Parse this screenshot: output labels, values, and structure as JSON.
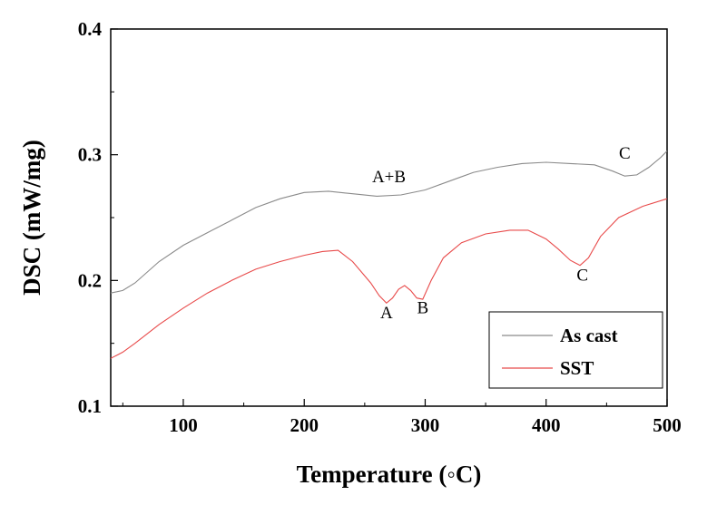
{
  "chart_data": {
    "type": "line",
    "xlabel": "Temperature (◦C)",
    "ylabel": "DSC (mW/mg)",
    "xlim": [
      40,
      500
    ],
    "ylim": [
      0.1,
      0.4
    ],
    "x_ticks": [
      "100",
      "200",
      "300",
      "400",
      "500"
    ],
    "y_ticks": [
      "0.1",
      "0.2",
      "0.3",
      "0.4"
    ],
    "grid": false,
    "legend_position": "bottom-right",
    "series": [
      {
        "name": "As cast",
        "color": "#8a8a8a",
        "x": [
          40,
          50,
          60,
          80,
          100,
          120,
          140,
          160,
          180,
          200,
          220,
          240,
          260,
          280,
          300,
          320,
          340,
          360,
          380,
          400,
          420,
          440,
          455,
          465,
          475,
          485,
          495,
          500
        ],
        "y": [
          0.19,
          0.192,
          0.198,
          0.215,
          0.228,
          0.238,
          0.248,
          0.258,
          0.265,
          0.27,
          0.271,
          0.269,
          0.267,
          0.268,
          0.272,
          0.279,
          0.286,
          0.29,
          0.293,
          0.294,
          0.293,
          0.292,
          0.287,
          0.283,
          0.284,
          0.29,
          0.298,
          0.303
        ]
      },
      {
        "name": "SST",
        "color": "#e84a4a",
        "x": [
          40,
          50,
          60,
          80,
          100,
          120,
          140,
          160,
          180,
          200,
          215,
          228,
          240,
          255,
          262,
          268,
          273,
          278,
          283,
          288,
          293,
          298,
          305,
          315,
          330,
          350,
          370,
          385,
          400,
          410,
          420,
          428,
          435,
          445,
          460,
          480,
          500
        ],
        "y": [
          0.138,
          0.143,
          0.15,
          0.165,
          0.178,
          0.19,
          0.2,
          0.209,
          0.215,
          0.22,
          0.223,
          0.224,
          0.215,
          0.198,
          0.188,
          0.182,
          0.186,
          0.193,
          0.196,
          0.192,
          0.186,
          0.185,
          0.2,
          0.218,
          0.23,
          0.237,
          0.24,
          0.24,
          0.233,
          0.225,
          0.216,
          0.212,
          0.218,
          0.235,
          0.25,
          0.259,
          0.265
        ]
      }
    ],
    "annotations": [
      {
        "text": "A+B",
        "x": 270,
        "y": 0.278
      },
      {
        "text": "A",
        "x": 268,
        "y": 0.17
      },
      {
        "text": "B",
        "x": 298,
        "y": 0.174
      },
      {
        "text": "C",
        "x": 430,
        "y": 0.2
      },
      {
        "text": "C",
        "x": 465,
        "y": 0.297
      }
    ]
  }
}
